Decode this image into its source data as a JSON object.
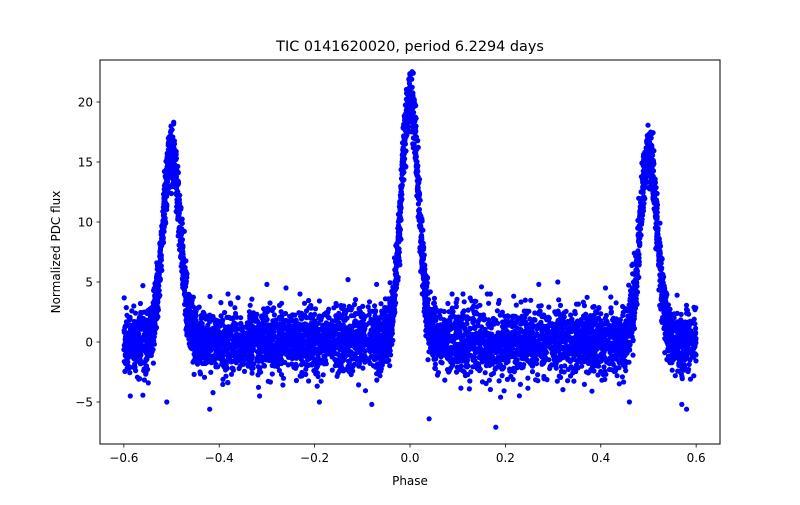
{
  "chart_data": {
    "type": "scatter",
    "title": "TIC 0141620020, period 6.2294 days",
    "xlabel": "Phase",
    "ylabel": "Normalized PDC flux",
    "xlim": [
      -0.65,
      0.65
    ],
    "ylim": [
      -8.5,
      23.5
    ],
    "xticks": [
      -0.6,
      -0.4,
      -0.2,
      0.0,
      0.2,
      0.4,
      0.6
    ],
    "xtick_labels": [
      "−0.6",
      "−0.4",
      "−0.2",
      "0.0",
      "0.2",
      "0.4",
      "0.6"
    ],
    "yticks": [
      -5,
      0,
      5,
      10,
      15,
      20
    ],
    "ytick_labels": [
      "−5",
      "0",
      "5",
      "10",
      "15",
      "20"
    ],
    "grid": false,
    "marker_color": "#0000ff",
    "series": [
      {
        "phase_range": [
          -0.6,
          0.6
        ],
        "baseline": {
          "center": 0.0,
          "spread": 1.8,
          "range": [
            -5.5,
            5.0
          ]
        },
        "peaks": [
          {
            "phase": -0.5,
            "max": 17.2
          },
          {
            "phase": 0.0,
            "max": 21.9
          },
          {
            "phase": 0.5,
            "max": 17.2
          }
        ],
        "outliers": [
          [
            -0.56,
            4.7
          ],
          [
            -0.51,
            -5.0
          ],
          [
            -0.42,
            -5.6
          ],
          [
            -0.3,
            4.8
          ],
          [
            -0.26,
            4.5
          ],
          [
            -0.19,
            -5.0
          ],
          [
            -0.13,
            5.2
          ],
          [
            -0.08,
            -5.2
          ],
          [
            -0.07,
            4.8
          ],
          [
            0.04,
            -6.4
          ],
          [
            0.15,
            4.6
          ],
          [
            0.18,
            -7.1
          ],
          [
            0.19,
            -4.6
          ],
          [
            0.27,
            4.8
          ],
          [
            0.31,
            5.0
          ],
          [
            0.41,
            4.5
          ],
          [
            0.46,
            -5.0
          ],
          [
            0.57,
            -5.2
          ],
          [
            0.58,
            -5.6
          ],
          [
            0.56,
            3.9
          ]
        ]
      }
    ]
  }
}
